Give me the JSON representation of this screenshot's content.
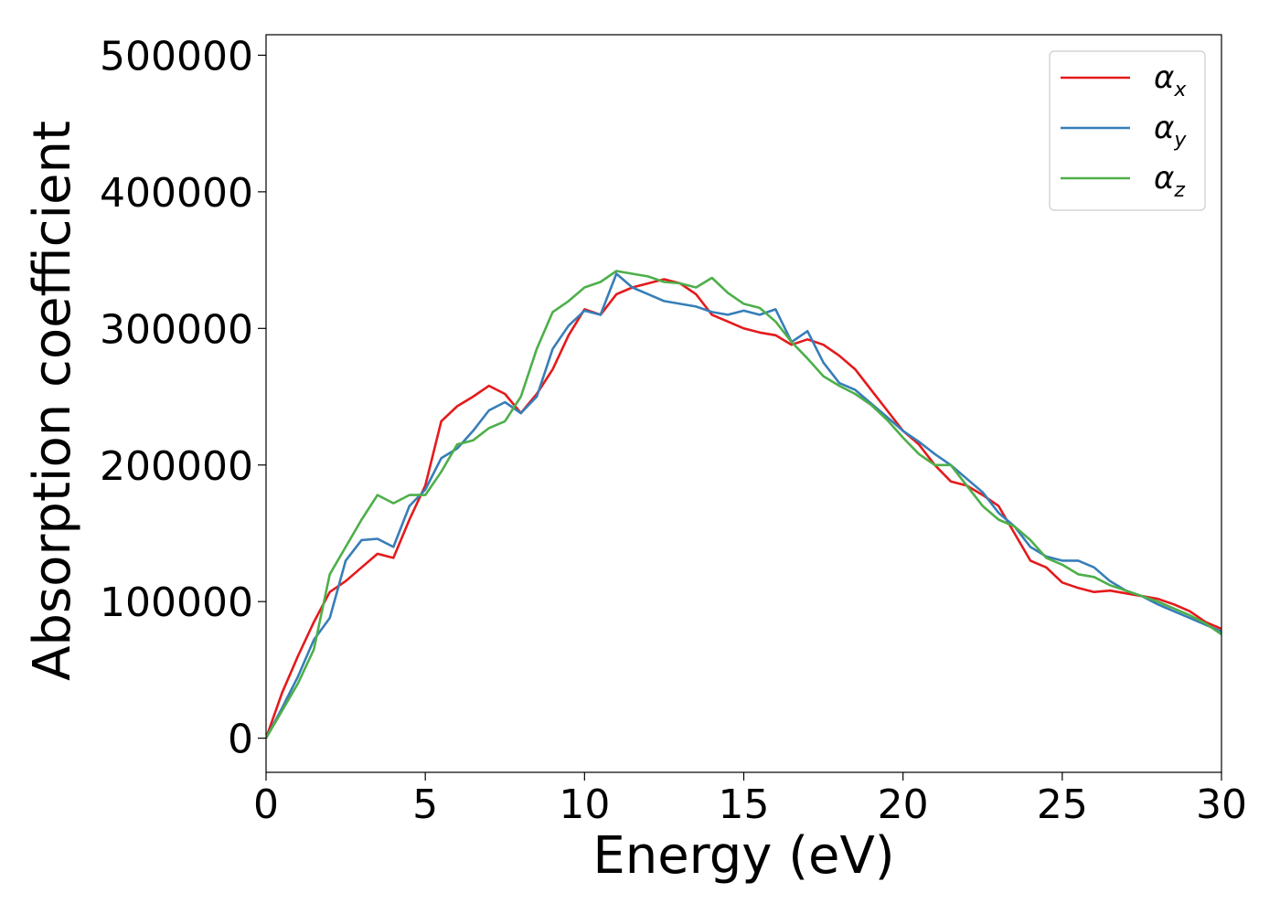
{
  "chart_data": {
    "type": "line",
    "xlabel": "Energy (eV)",
    "ylabel": "Absorption coefficient",
    "xlim": [
      0,
      30
    ],
    "ylim": [
      -25000,
      515000
    ],
    "xticks": [
      0,
      5,
      10,
      15,
      20,
      25,
      30
    ],
    "yticks": [
      0,
      100000,
      200000,
      300000,
      400000,
      500000
    ],
    "xtick_labels": [
      "0",
      "5",
      "10",
      "15",
      "20",
      "25",
      "30"
    ],
    "ytick_labels": [
      "0",
      "100000",
      "200000",
      "300000",
      "400000",
      "500000"
    ],
    "grid": false,
    "legend_position": "top-right",
    "x": [
      0,
      0.5,
      1,
      1.5,
      2,
      2.5,
      3,
      3.5,
      4,
      4.5,
      5,
      5.5,
      6,
      6.5,
      7,
      7.5,
      8,
      8.5,
      9,
      9.5,
      10,
      10.5,
      11,
      11.5,
      12,
      12.5,
      13,
      13.5,
      14,
      14.5,
      15,
      15.5,
      16,
      16.5,
      17,
      17.5,
      18,
      18.5,
      19,
      19.5,
      20,
      20.5,
      21,
      21.5,
      22,
      22.5,
      23,
      23.5,
      24,
      24.5,
      25,
      25.5,
      26,
      26.5,
      27,
      27.5,
      28,
      28.5,
      29,
      29.5,
      30
    ],
    "series": [
      {
        "name": "α",
        "subscript": "x",
        "color": "#e41a1c",
        "values": [
          0,
          33000,
          60000,
          85000,
          107000,
          115000,
          125000,
          135000,
          132000,
          160000,
          185000,
          232000,
          243000,
          250000,
          258000,
          252000,
          238000,
          252000,
          270000,
          295000,
          314000,
          310000,
          325000,
          330000,
          333000,
          336000,
          333000,
          325000,
          310000,
          305000,
          300000,
          297000,
          295000,
          288000,
          292000,
          288000,
          280000,
          270000,
          255000,
          240000,
          225000,
          215000,
          200000,
          188000,
          185000,
          178000,
          170000,
          150000,
          130000,
          125000,
          114000,
          110000,
          107000,
          108000,
          106000,
          104000,
          102000,
          98000,
          93000,
          85000,
          80000
        ]
      },
      {
        "name": "α",
        "subscript": "y",
        "color": "#377eb8",
        "values": [
          0,
          22000,
          45000,
          72000,
          88000,
          130000,
          145000,
          146000,
          140000,
          170000,
          182000,
          205000,
          212000,
          225000,
          240000,
          246000,
          238000,
          250000,
          285000,
          302000,
          313000,
          310000,
          340000,
          330000,
          325000,
          320000,
          318000,
          316000,
          312000,
          310000,
          313000,
          310000,
          314000,
          290000,
          298000,
          275000,
          260000,
          255000,
          245000,
          235000,
          225000,
          217000,
          208000,
          200000,
          190000,
          180000,
          165000,
          155000,
          140000,
          133000,
          130000,
          130000,
          125000,
          115000,
          108000,
          104000,
          98000,
          93000,
          88000,
          83000,
          78000
        ]
      },
      {
        "name": "α",
        "subscript": "z",
        "color": "#4daf4a",
        "values": [
          0,
          20000,
          40000,
          65000,
          120000,
          140000,
          160000,
          178000,
          172000,
          178000,
          178000,
          195000,
          215000,
          218000,
          227000,
          232000,
          250000,
          285000,
          312000,
          320000,
          330000,
          334000,
          342000,
          340000,
          338000,
          334000,
          333000,
          330000,
          337000,
          326000,
          318000,
          315000,
          305000,
          290000,
          278000,
          265000,
          258000,
          252000,
          244000,
          233000,
          220000,
          208000,
          200000,
          200000,
          185000,
          170000,
          160000,
          155000,
          145000,
          132000,
          127000,
          120000,
          118000,
          112000,
          108000,
          104000,
          100000,
          95000,
          90000,
          84000,
          76000
        ]
      }
    ]
  }
}
